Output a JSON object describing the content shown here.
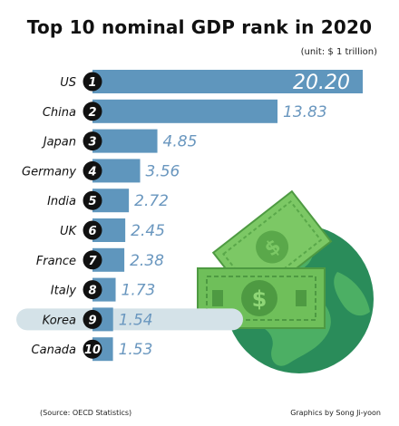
{
  "colors": {
    "bar": "#5f96bd",
    "value_text": "#6a97bf",
    "highlight_band": "#d4e2e8",
    "rank_circle": "#111111",
    "globe_ocean": "#2a8c5a",
    "globe_land": "#4caf64",
    "money_green": "#6fbf5a"
  },
  "icons": [
    "money-icon",
    "globe-icon"
  ],
  "footer": {
    "source": "(Source: OECD Statistics)",
    "credit": "Graphics by Song Ji-yoon"
  },
  "chart_data": {
    "type": "bar",
    "orientation": "horizontal",
    "title": "Top 10 nominal GDP rank in 2020",
    "subtitle": "(unit: $ 1 trillion)",
    "categories": [
      "US",
      "China",
      "Japan",
      "Germany",
      "India",
      "UK",
      "France",
      "Italy",
      "Korea",
      "Canada"
    ],
    "ranks": [
      "1",
      "2",
      "3",
      "4",
      "5",
      "6",
      "7",
      "8",
      "9",
      "10"
    ],
    "values": [
      20.2,
      13.83,
      4.85,
      3.56,
      2.72,
      2.45,
      2.38,
      1.73,
      1.54,
      1.53
    ],
    "value_labels": [
      "20.20",
      "13.83",
      "4.85",
      "3.56",
      "2.72",
      "2.45",
      "2.38",
      "1.73",
      "1.54",
      "1.53"
    ],
    "highlighted_category": "Korea",
    "xlim": [
      0,
      20.2
    ],
    "grid": false,
    "legend": "none"
  }
}
